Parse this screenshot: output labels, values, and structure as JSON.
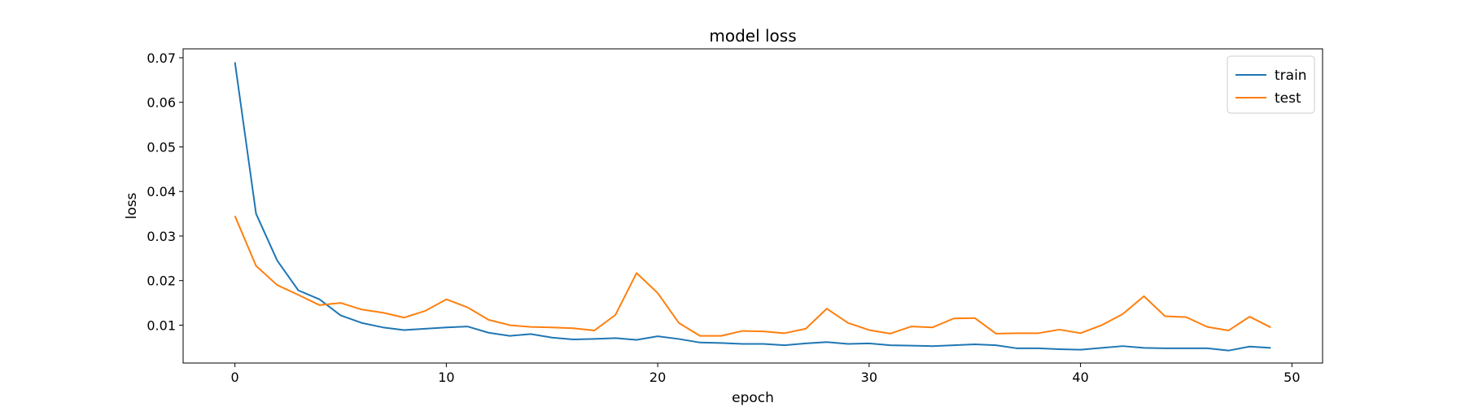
{
  "chart_data": {
    "type": "line",
    "title": "model loss",
    "xlabel": "epoch",
    "ylabel": "loss",
    "xlim": [
      -2.45,
      51.45
    ],
    "ylim": [
      0.0015,
      0.072
    ],
    "xticks": [
      0,
      10,
      20,
      30,
      40,
      50
    ],
    "xtick_labels": [
      "0",
      "10",
      "20",
      "30",
      "40",
      "50"
    ],
    "yticks": [
      0.01,
      0.02,
      0.03,
      0.04,
      0.05,
      0.06,
      0.07
    ],
    "ytick_labels": [
      "0.01",
      "0.02",
      "0.03",
      "0.04",
      "0.05",
      "0.06",
      "0.07"
    ],
    "grid": false,
    "legend_position": "top-right",
    "x": [
      0,
      1,
      2,
      3,
      4,
      5,
      6,
      7,
      8,
      9,
      10,
      11,
      12,
      13,
      14,
      15,
      16,
      17,
      18,
      19,
      20,
      21,
      22,
      23,
      24,
      25,
      26,
      27,
      28,
      29,
      30,
      31,
      32,
      33,
      34,
      35,
      36,
      37,
      38,
      39,
      40,
      41,
      42,
      43,
      44,
      45,
      46,
      47,
      48,
      49
    ],
    "series": [
      {
        "name": "train",
        "color": "#1f77b4",
        "values": [
          0.069,
          0.035,
          0.0245,
          0.0178,
          0.0158,
          0.0122,
          0.0105,
          0.0095,
          0.0089,
          0.0092,
          0.0095,
          0.0097,
          0.0083,
          0.0076,
          0.008,
          0.0072,
          0.0068,
          0.0069,
          0.0071,
          0.0067,
          0.0075,
          0.0069,
          0.0061,
          0.006,
          0.0058,
          0.0058,
          0.0055,
          0.0059,
          0.0062,
          0.0058,
          0.0059,
          0.0055,
          0.0054,
          0.0053,
          0.0055,
          0.0057,
          0.0055,
          0.0048,
          0.0048,
          0.0046,
          0.0045,
          0.0049,
          0.0053,
          0.0049,
          0.0048,
          0.0048,
          0.0048,
          0.0043,
          0.0052,
          0.0049
        ]
      },
      {
        "name": "test",
        "color": "#ff7f0e",
        "values": [
          0.0345,
          0.0233,
          0.019,
          0.0168,
          0.0145,
          0.015,
          0.0135,
          0.0128,
          0.0117,
          0.0132,
          0.0158,
          0.014,
          0.0112,
          0.01,
          0.0096,
          0.0095,
          0.0093,
          0.0088,
          0.0123,
          0.0217,
          0.0172,
          0.0105,
          0.0076,
          0.0076,
          0.0087,
          0.0086,
          0.0082,
          0.0092,
          0.0137,
          0.0105,
          0.0089,
          0.0081,
          0.0097,
          0.0095,
          0.0115,
          0.0116,
          0.0081,
          0.0082,
          0.0082,
          0.009,
          0.0082,
          0.01,
          0.0125,
          0.0165,
          0.012,
          0.0118,
          0.0096,
          0.0088,
          0.0119,
          0.0095
        ]
      }
    ]
  }
}
